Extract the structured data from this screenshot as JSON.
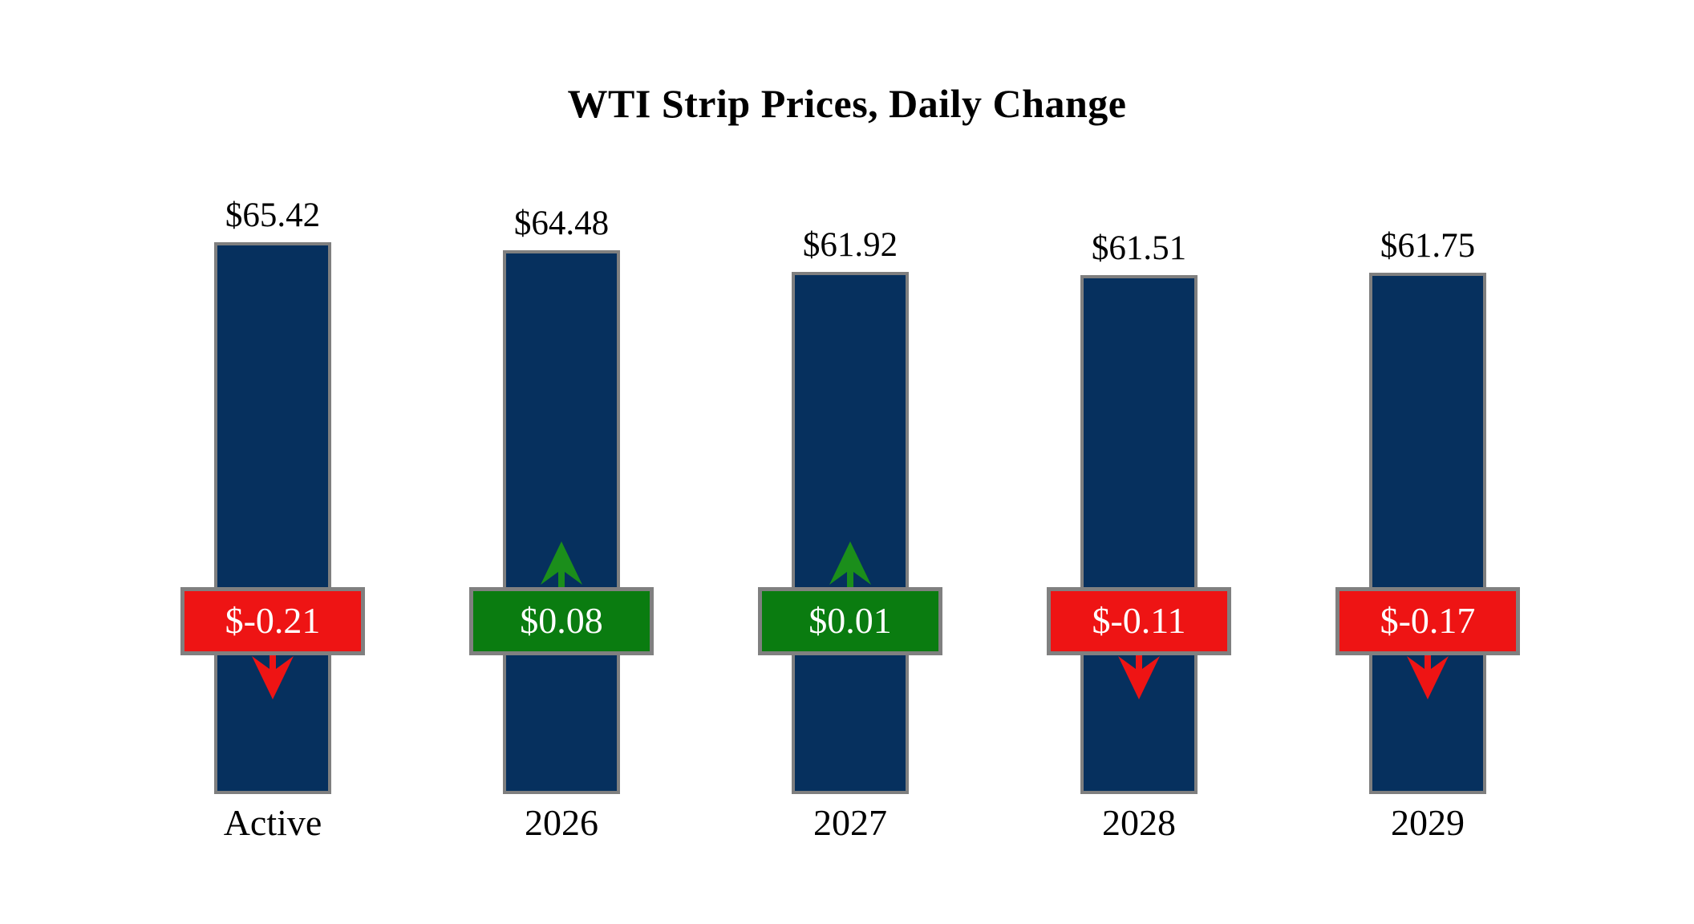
{
  "colors": {
    "bar_fill": "#06305e",
    "bar_border": "#7f7f7f",
    "badge_border": "#808080",
    "negative": "#ee1414",
    "positive": "#0a7c10",
    "positive_arrow": "#1b8e1b",
    "badge_text": "#ffffff",
    "label_text": "#000000",
    "background": "#ffffff"
  },
  "chart_data": {
    "type": "bar",
    "title": "WTI Strip Prices, Daily Change",
    "xlabel": "",
    "ylabel": "",
    "value_axis_visible": false,
    "gridlines": false,
    "legend": "none",
    "categories": [
      "Active",
      "2026",
      "2027",
      "2028",
      "2029"
    ],
    "series": [
      {
        "name": "Strip Price",
        "values": [
          65.42,
          64.48,
          61.92,
          61.51,
          61.75
        ]
      },
      {
        "name": "Daily Change",
        "values": [
          -0.21,
          0.08,
          0.01,
          -0.11,
          -0.17
        ]
      }
    ],
    "bars": [
      {
        "category": "Active",
        "price": 65.42,
        "price_label": "$65.42",
        "change": -0.21,
        "change_label": "$-0.21",
        "direction": "down"
      },
      {
        "category": "2026",
        "price": 64.48,
        "price_label": "$64.48",
        "change": 0.08,
        "change_label": "$0.08",
        "direction": "up"
      },
      {
        "category": "2027",
        "price": 61.92,
        "price_label": "$61.92",
        "change": 0.01,
        "change_label": "$0.01",
        "direction": "up"
      },
      {
        "category": "2028",
        "price": 61.51,
        "price_label": "$61.51",
        "change": -0.11,
        "change_label": "$-0.11",
        "direction": "down"
      },
      {
        "category": "2029",
        "price": 61.75,
        "price_label": "$61.75",
        "change": -0.17,
        "change_label": "$-0.17",
        "direction": "down"
      }
    ]
  }
}
